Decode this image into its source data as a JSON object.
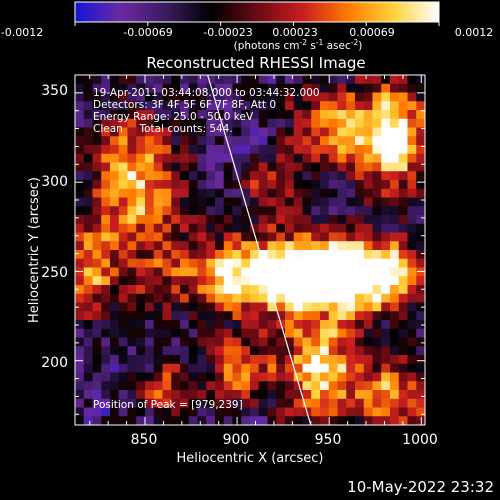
{
  "colorbar": {
    "tick_labels": [
      "-0.0012",
      "-0.00069",
      "-0.00023",
      "0.00023",
      "0.00069",
      "0.0012"
    ],
    "range": [
      -0.0012,
      0.0012
    ],
    "unit_parts": {
      "a": "(photons cm",
      "a_sup": "-2",
      "b": " s",
      "b_sup": "-1",
      "c": " asec",
      "c_sup": "-2",
      "d": ")"
    },
    "colors": [
      "#1414d8",
      "#6a2aa0",
      "#3a1a60",
      "#000000",
      "#6a0a14",
      "#c81e1e",
      "#ff7a00",
      "#ffd23c",
      "#ffffff"
    ]
  },
  "chart_data": {
    "type": "heatmap",
    "title": "Reconstructed RHESSI Image",
    "xlabel": "Heliocentric X (arcsec)",
    "ylabel": "Heliocentric Y (arcsec)",
    "xlim": [
      812,
      1002
    ],
    "ylim": [
      164,
      360
    ],
    "xticks": [
      850,
      900,
      950,
      1000
    ],
    "yticks": [
      200,
      250,
      300,
      350
    ],
    "annotations": [
      "19-Apr-2011 03:44:08.000 to 03:44:32.000",
      "Detectors: 3F 4F 5F 6F 7F 8F, Att 0",
      "Energy Range: 25.0 - 50.0 keV",
      "Clean     Total counts: 544."
    ],
    "peak_label": "Position of Peak = [979,239]",
    "peak_position": [
      979,
      239
    ],
    "limb_points": [
      [
        884,
        360
      ],
      [
        940,
        164
      ]
    ],
    "hot_regions": [
      {
        "center": [
          925,
          248
        ],
        "spread": [
          45,
          16
        ],
        "strength": 1.0
      },
      {
        "center": [
          962,
          248
        ],
        "spread": [
          26,
          12
        ],
        "strength": 0.95
      },
      {
        "center": [
          985,
          325
        ],
        "spread": [
          14,
          22
        ],
        "strength": 0.9
      },
      {
        "center": [
          955,
          330
        ],
        "spread": [
          20,
          16
        ],
        "strength": 0.6
      },
      {
        "center": [
          845,
          300
        ],
        "spread": [
          18,
          28
        ],
        "strength": 0.75
      },
      {
        "center": [
          820,
          250
        ],
        "spread": [
          10,
          18
        ],
        "strength": 0.6
      },
      {
        "center": [
          945,
          195
        ],
        "spread": [
          16,
          20
        ],
        "strength": 0.85
      },
      {
        "center": [
          985,
          180
        ],
        "spread": [
          16,
          14
        ],
        "strength": 0.7
      },
      {
        "center": [
          900,
          195
        ],
        "spread": [
          14,
          14
        ],
        "strength": 0.55
      },
      {
        "center": [
          860,
          185
        ],
        "spread": [
          10,
          10
        ],
        "strength": 0.45
      },
      {
        "center": [
          920,
          300
        ],
        "spread": [
          10,
          10
        ],
        "strength": 0.55
      }
    ]
  },
  "footer": {
    "datestamp": "10-May-2022 23:32"
  }
}
